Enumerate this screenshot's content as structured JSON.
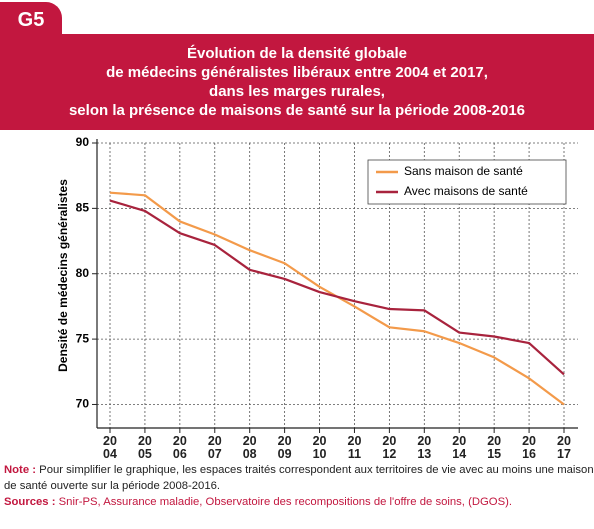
{
  "figure_label": "G5",
  "note_label": "Note :",
  "note": "Pour simplifier le graphique, les espaces traités correspondent aux territoires de vie avec au moins une maison de santé ouverte sur la période 2008-2016.",
  "sources_label": "Sources :",
  "sources": "Snir-PS, Assurance maladie, Observatoire des recompositions de l'offre de soins, (DGOS).",
  "chart_data": {
    "type": "line",
    "title": [
      "Évolution de la densité globale",
      "de médecins généralistes libéraux  entre 2004 et 2017,",
      "dans les marges rurales,",
      "selon la présence de maisons de santé  sur la période 2008-2016"
    ],
    "y_label": "Densité de médecins généralistes",
    "categories": [
      "2004",
      "2005",
      "2006",
      "2007",
      "2008",
      "2009",
      "2010",
      "2011",
      "2012",
      "2013",
      "2014",
      "2015",
      "2016",
      "2017"
    ],
    "series": [
      {
        "name": "Sans maison de santé",
        "color": "#f39a4a",
        "values": [
          86.2,
          86.0,
          84.0,
          83.0,
          81.8,
          80.8,
          79.0,
          77.5,
          75.9,
          75.6,
          74.7,
          73.6,
          72.0,
          70.0
        ]
      },
      {
        "name": "Avec maisons de santé",
        "color": "#a8233d",
        "values": [
          85.6,
          84.8,
          83.1,
          82.2,
          80.3,
          79.6,
          78.6,
          77.9,
          77.3,
          77.2,
          75.5,
          75.2,
          74.7,
          72.3
        ]
      }
    ],
    "ylim": [
      68.2,
      90
    ],
    "yticks": [
      70,
      75,
      80,
      85,
      90
    ],
    "grid": true,
    "legend": "upper right"
  }
}
